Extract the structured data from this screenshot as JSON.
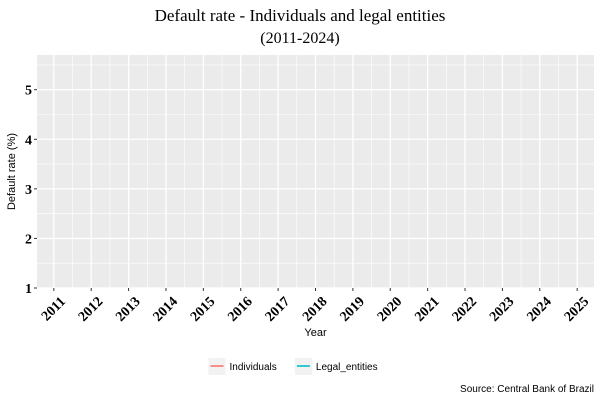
{
  "chart_data": {
    "type": "line",
    "title": "Default rate - Individuals and legal entities",
    "subtitle": "(2011-2024)",
    "xlabel": "Year",
    "ylabel": "Default rate (%)",
    "x_ticks": [
      "2011",
      "2012",
      "2013",
      "2014",
      "2015",
      "2016",
      "2017",
      "2018",
      "2019",
      "2020",
      "2021",
      "2022",
      "2023",
      "2024",
      "2025"
    ],
    "y_ticks": [
      1,
      2,
      3,
      4,
      5
    ],
    "ylim": [
      1,
      5.7
    ],
    "xlim": [
      2010.55,
      2025.45
    ],
    "grid": true,
    "legend_position": "bottom",
    "series": [
      {
        "name": "Individuals",
        "color": "#F8766D",
        "values": []
      },
      {
        "name": "Legal_entities",
        "color": "#00BFC4",
        "values": []
      }
    ],
    "caption": "Source: Central Bank of Brazil",
    "panel_color": "#EBEBEB",
    "grid_color": "#FFFFFF"
  }
}
